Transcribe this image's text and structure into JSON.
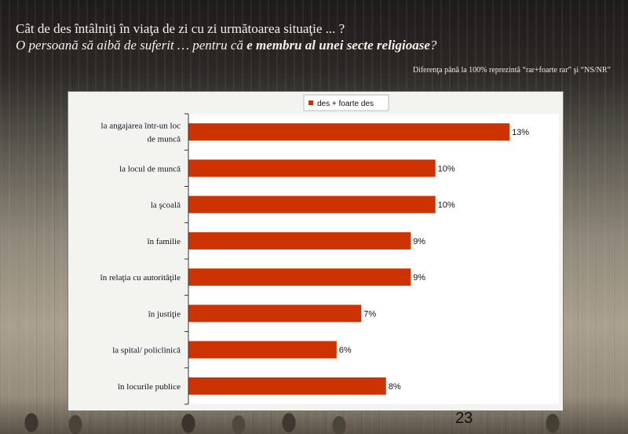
{
  "header": {
    "title": "Cât de des întâlniţi în viaţa de zi cu zi următoarea situaţie ... ?",
    "subtitle_prefix": "O persoană să aibă de suferit … pentru că ",
    "subtitle_emphasis": "e membru al unei secte religioase",
    "subtitle_suffix": "?",
    "note": "Diferenţa până la 100% reprezintă  “rar+foarte rar” şi “NS/NR”"
  },
  "page_number": "23",
  "colors": {
    "bar": "#cc3300",
    "panel": "#f3f3f0",
    "plot": "#ffffff"
  },
  "chart_data": {
    "type": "bar",
    "orientation": "horizontal",
    "categories": [
      "la angajarea într-un loc de muncă",
      "la locul de muncă",
      "la şcoală",
      "în familie",
      "în relaţia cu autorităţile",
      "în justiţie",
      "la spital/ policlinică",
      "în locurile publice"
    ],
    "series": [
      {
        "name": "des + foarte des",
        "values": [
          13,
          10,
          10,
          9,
          9,
          7,
          6,
          8
        ],
        "labels": [
          "13%",
          "10%",
          "10%",
          "9%",
          "9%",
          "7%",
          "6%",
          "8%"
        ]
      }
    ],
    "xlim": [
      0,
      15
    ],
    "grid": false,
    "legend_position": "top"
  }
}
